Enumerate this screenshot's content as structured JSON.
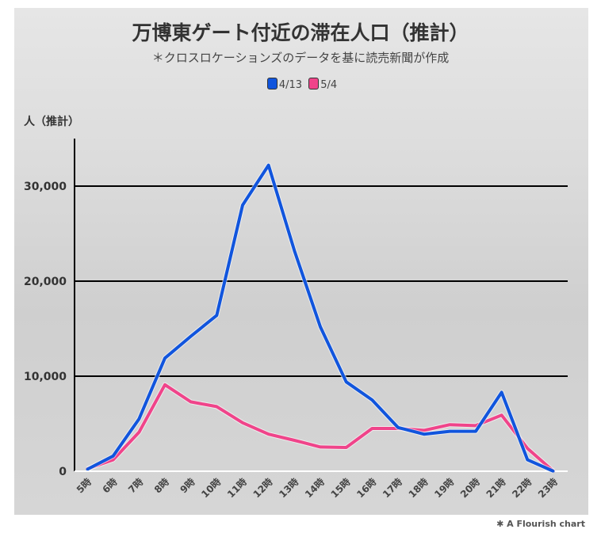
{
  "chart_data": {
    "type": "line",
    "title": "万博東ゲート付近の滞在人口（推計）",
    "subtitle": "＊クロスロケーションズのデータを基に読売新聞が作成",
    "ylabel": "人（推計）",
    "xlabel": "",
    "categories": [
      "5時",
      "6時",
      "7時",
      "8時",
      "9時",
      "10時",
      "11時",
      "12時",
      "13時",
      "14時",
      "15時",
      "16時",
      "17時",
      "18時",
      "19時",
      "20時",
      "21時",
      "22時",
      "23時"
    ],
    "ylim": [
      0,
      35000
    ],
    "yticks": [
      0,
      10000,
      20000,
      30000
    ],
    "ytick_labels": [
      "0",
      "10,000",
      "20,000",
      "30,000"
    ],
    "grid": true,
    "legend_position": "top-center",
    "series": [
      {
        "name": "4/13",
        "color": "#1155dd",
        "values": [
          200,
          1600,
          5500,
          11900,
          14200,
          16400,
          28000,
          32200,
          23200,
          15200,
          9400,
          7500,
          4600,
          3900,
          4200,
          4200,
          8300,
          1200,
          0
        ]
      },
      {
        "name": "5/4",
        "color": "#f0448a",
        "values": [
          250,
          1200,
          4100,
          9100,
          7300,
          6800,
          5100,
          3900,
          3250,
          2550,
          2500,
          4500,
          4500,
          4300,
          4900,
          4800,
          5900,
          2400,
          0
        ]
      }
    ]
  },
  "credit": "A Flourish chart"
}
